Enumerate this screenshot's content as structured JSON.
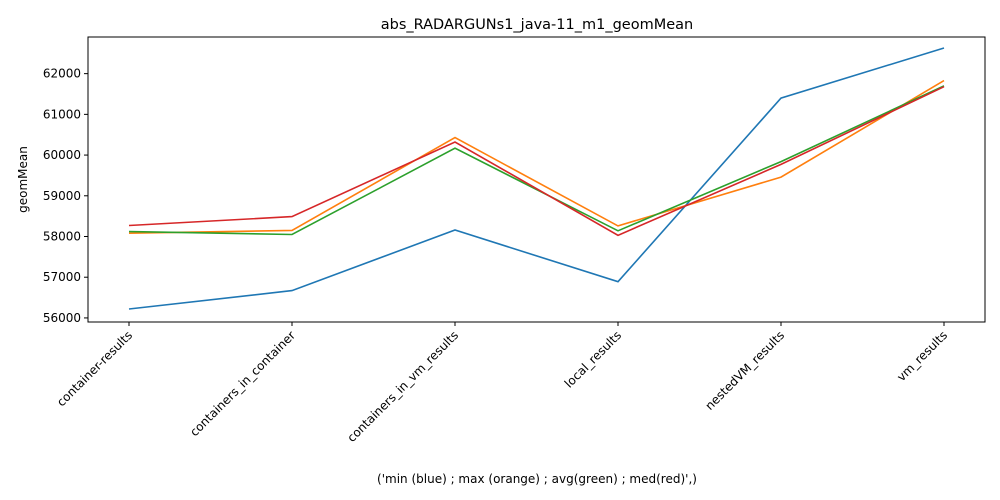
{
  "chart_data": {
    "type": "line",
    "title": "abs_RADARGUNs1_java-11_m1_geomMean",
    "xlabel": "('min (blue) ; max (orange) ; avg(green) ; med(red)',)",
    "ylabel": "geomMean",
    "categories": [
      "container-results",
      "containers_in_container",
      "containers_in_vm_results",
      "local_results",
      "nestedVM_results",
      "vm_results"
    ],
    "ylim": [
      55900,
      62900
    ],
    "yticks": [
      56000,
      57000,
      58000,
      59000,
      60000,
      61000,
      62000
    ],
    "grid": false,
    "legend": "none",
    "series": [
      {
        "color": "#1f77b4",
        "values": [
          56220,
          56670,
          58160,
          56890,
          61400,
          62630
        ]
      },
      {
        "color": "#ff7f0e",
        "values": [
          58080,
          58150,
          60430,
          58260,
          59460,
          61830
        ]
      },
      {
        "color": "#2ca02c",
        "values": [
          58120,
          58050,
          60170,
          58140,
          59840,
          61700
        ]
      },
      {
        "color": "#d62728",
        "values": [
          58270,
          58490,
          60320,
          58030,
          59770,
          61680
        ]
      }
    ]
  }
}
